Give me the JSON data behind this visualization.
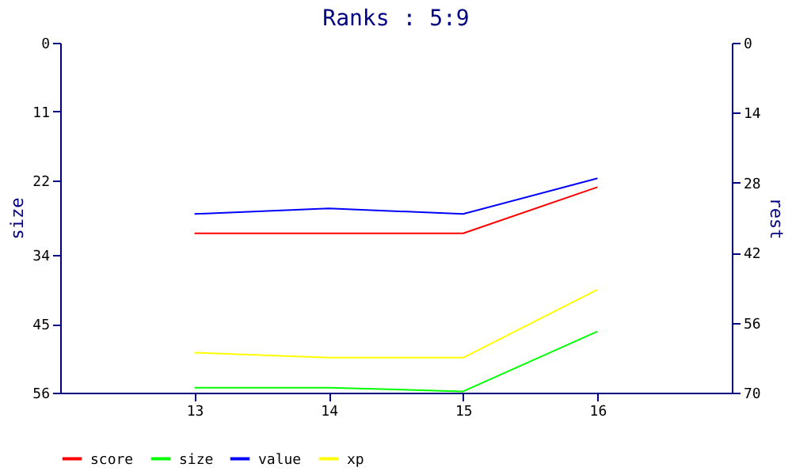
{
  "chart_data": {
    "type": "line",
    "title": "Ranks : 5:9",
    "ylabel": "size",
    "y2label": "rest",
    "x": [
      13,
      14,
      15,
      16
    ],
    "xlim": [
      12,
      17
    ],
    "xticks": [
      13,
      14,
      15,
      16
    ],
    "ylim": [
      56,
      0
    ],
    "yticks": [
      0,
      11,
      22,
      34,
      45,
      56
    ],
    "y2lim": [
      70,
      0
    ],
    "y2ticks": [
      0,
      14,
      28,
      42,
      56,
      70
    ],
    "series": [
      {
        "name": "score",
        "color": "#ff0000",
        "values": [
          30.5,
          30.5,
          30.5,
          23.1
        ]
      },
      {
        "name": "size",
        "color": "#00ff00",
        "values": [
          55.2,
          55.2,
          55.8,
          46.2
        ]
      },
      {
        "name": "value",
        "color": "#0000ff",
        "values": [
          27.4,
          26.5,
          27.4,
          21.7
        ]
      },
      {
        "name": "xp",
        "color": "#ffff00",
        "values": [
          49.6,
          50.4,
          50.4,
          39.5
        ]
      }
    ],
    "legend": "bottom left",
    "grid": false,
    "marker": "none",
    "line_style": "solid"
  }
}
